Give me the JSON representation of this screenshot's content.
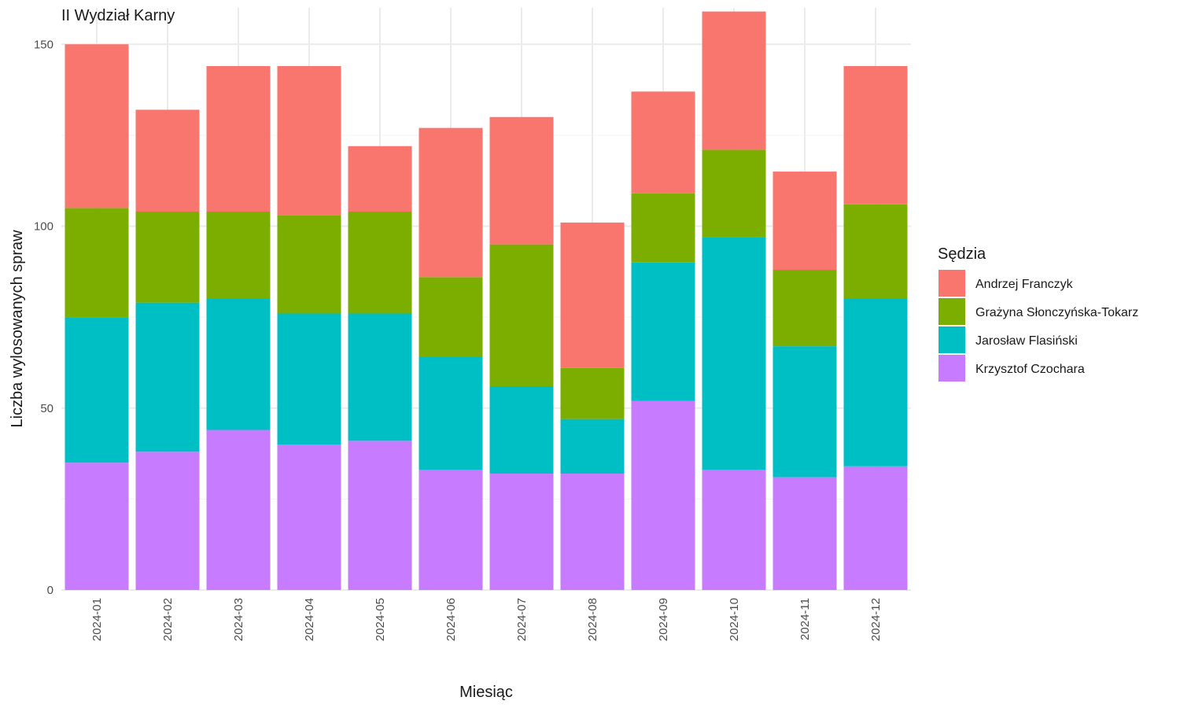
{
  "chart_data": {
    "type": "bar",
    "stacked": true,
    "title": "II Wydział Karny",
    "xlabel": "Miesiąc",
    "ylabel": "Liczba wylosowanych spraw",
    "ylim": [
      0,
      160
    ],
    "yticks": [
      0,
      50,
      100,
      150
    ],
    "grid": true,
    "legend_position": "right",
    "legend_title": "Sędzia",
    "categories": [
      "2024-01",
      "2024-02",
      "2024-03",
      "2024-04",
      "2024-05",
      "2024-06",
      "2024-07",
      "2024-08",
      "2024-09",
      "2024-10",
      "2024-11",
      "2024-12"
    ],
    "series": [
      {
        "name": "Krzysztof Czochara",
        "color": "#C77CFF",
        "values": [
          35,
          38,
          44,
          40,
          41,
          33,
          32,
          32,
          52,
          33,
          31,
          34
        ]
      },
      {
        "name": "Jarosław Flasiński",
        "color": "#00BFC4",
        "values": [
          40,
          41,
          36,
          36,
          35,
          31,
          24,
          15,
          38,
          64,
          36,
          46
        ]
      },
      {
        "name": "Grażyna Słonczyńska-Tokarz",
        "color": "#7CAE00",
        "values": [
          30,
          25,
          24,
          27,
          28,
          22,
          39,
          14,
          19,
          24,
          21,
          26
        ]
      },
      {
        "name": "Andrzej Franczyk",
        "color": "#F8766D",
        "values": [
          45,
          28,
          40,
          41,
          18,
          41,
          35,
          40,
          28,
          38,
          27,
          38
        ]
      }
    ],
    "legend_order": [
      "Andrzej Franczyk",
      "Grażyna Słonczyńska-Tokarz",
      "Jarosław Flasiński",
      "Krzysztof Czochara"
    ]
  }
}
